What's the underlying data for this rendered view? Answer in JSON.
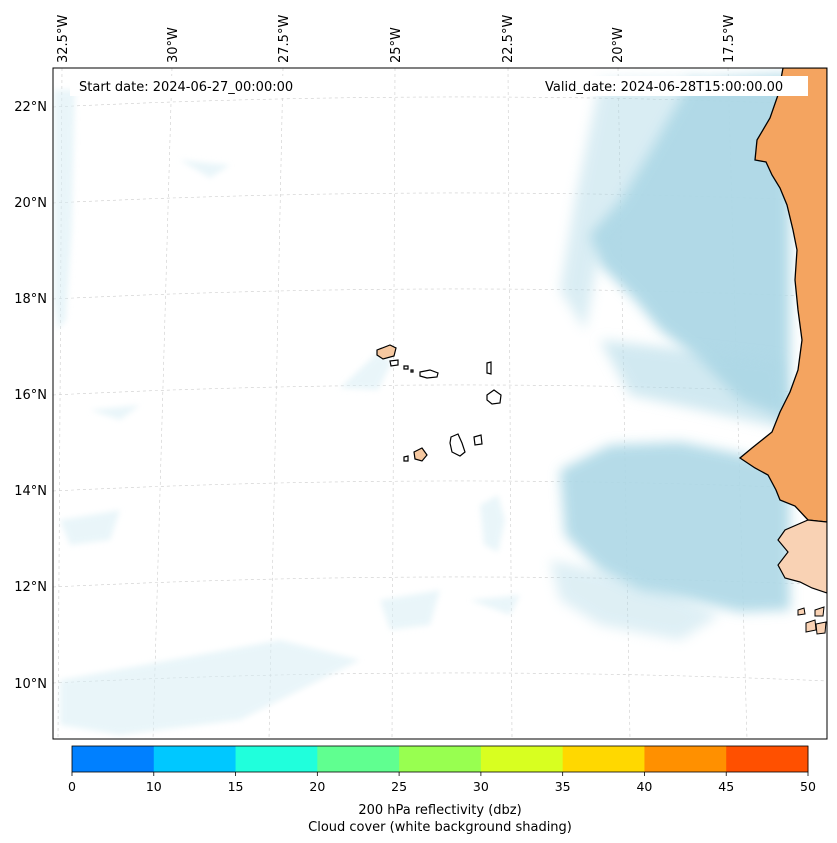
{
  "header": {
    "start_date": "Start date: 2024-06-27_00:00:00",
    "valid_date": "Valid_date: 2024-06-28T15:00:00.00"
  },
  "map": {
    "lon_labels": [
      "32.5°W",
      "30°W",
      "27.5°W",
      "25°W",
      "22.5°W",
      "20°W",
      "17.5°W"
    ],
    "lat_labels": [
      "22°N",
      "20°N",
      "18°N",
      "16°N",
      "14°N",
      "12°N",
      "10°N"
    ],
    "colors": {
      "land_mainland": "#f4a460",
      "land_islands": "#f6c8a0",
      "land_south": "#f9d2b4",
      "cloud": "#add8e6",
      "cloud_light": "#d8eef5",
      "coast": "#000000",
      "grid": "#cccccc"
    }
  },
  "colorbar": {
    "colors": [
      "#0080ff",
      "#00c8ff",
      "#20ffdc",
      "#60ff90",
      "#98ff50",
      "#d8ff20",
      "#ffd800",
      "#ff9000",
      "#ff5000"
    ],
    "ticks": [
      "0",
      "10",
      "15",
      "20",
      "25",
      "30",
      "35",
      "40",
      "45",
      "50"
    ],
    "label_line1": "200 hPa reflectivity (dbz)",
    "label_line2": "Cloud cover (white background shading)"
  }
}
